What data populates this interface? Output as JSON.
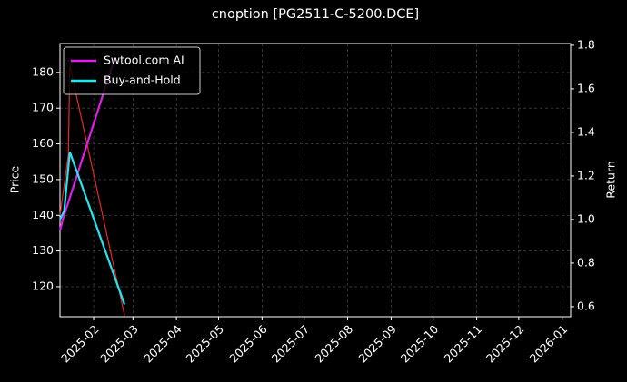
{
  "chart_data": {
    "type": "line",
    "title": "cnoption [PG2511-C-5200.DCE]",
    "ylabel": "Price",
    "y2label": "Return",
    "xlim": [
      "2025-01-08",
      "2026-01-07"
    ],
    "xticks": [
      "2025-02",
      "2025-03",
      "2025-04",
      "2025-05",
      "2025-06",
      "2025-07",
      "2025-08",
      "2025-09",
      "2025-10",
      "2025-11",
      "2025-12",
      "2026-01"
    ],
    "ylim": [
      111.6,
      188.1
    ],
    "yticks": [
      120,
      130,
      140,
      150,
      160,
      170,
      180
    ],
    "y2lim": [
      0.554,
      1.808
    ],
    "y2ticks": [
      0.6,
      0.8,
      {
        "value": 1,
        "label": "1.0"
      },
      1.2,
      1.4,
      1.6,
      1.8
    ],
    "grid": true,
    "legend": "upper left",
    "series": [
      {
        "color": "#e8262a",
        "x": [
          "2025-01-08",
          "2025-01-14",
          "2025-01-15",
          "2025-02-23"
        ],
        "values": [
          140,
          157,
          182,
          112
        ]
      },
      {
        "name": "Swtool.com AI",
        "color": "#e01ee8",
        "axis": "y2",
        "x": [
          "2025-01-08",
          "2025-01-10",
          "2025-01-15",
          "2025-01-20",
          "2025-02-16"
        ],
        "values": [
          0.95,
          1.0,
          1.1,
          1.2,
          1.74
        ]
      },
      {
        "name": "Buy-and-Hold",
        "color": "#22e6f0",
        "axis": "y2",
        "x": [
          "2025-01-08",
          "2025-01-11",
          "2025-01-15",
          "2025-02-23"
        ],
        "values": [
          1.0,
          1.04,
          1.31,
          0.61
        ]
      }
    ]
  }
}
